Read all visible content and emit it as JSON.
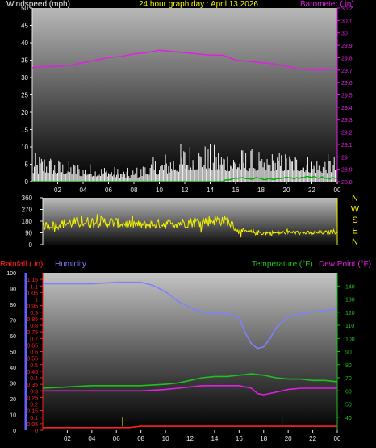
{
  "header": {
    "wind_label": "Windspeed (mph)",
    "title": "24 hour graph day : April 13 2026",
    "baro_label": "Barometer (.in)"
  },
  "lower_header": {
    "rain_label": "Rainfall (.in)",
    "humidity_label": "Humidity",
    "temp_label": "Temperature (°F)",
    "dew_label": "Dew Point (°F)"
  },
  "colors": {
    "wind": "#f0f0f0",
    "gust": "#00b000",
    "barometer": "#e020e0",
    "direction": "#f0f000",
    "rain": "#ff2020",
    "humidity": "#8080ff",
    "temperature": "#20c020",
    "dewpoint": "#e020e0",
    "axis_white": "#e8e8e8",
    "axis_yellow": "#f0f000",
    "axis_blue": "#6060ff",
    "axis_green": "#20c020",
    "axis_red": "#ff2020"
  },
  "chart_data": [
    {
      "type": "line",
      "x_ticks": [
        "02",
        "04",
        "06",
        "08",
        "10",
        "12",
        "14",
        "16",
        "18",
        "20",
        "22",
        "00"
      ],
      "y_left": {
        "label": "Windspeed (mph)",
        "ylim": [
          0,
          50
        ],
        "ticks": [
          0,
          5,
          10,
          15,
          20,
          25,
          30,
          35,
          40,
          45,
          50
        ]
      },
      "y_right": {
        "label": "Barometer (.in)",
        "ylim": [
          28.8,
          30.2
        ],
        "ticks": [
          "28.8",
          "28.9",
          "29",
          "29.1",
          "29.2",
          "29.3",
          "29.4",
          "29.5",
          "29.6",
          "29.7",
          "29.8",
          "29.9",
          "30",
          "30.1",
          "30.2"
        ]
      },
      "series": [
        {
          "name": "Barometer (.in)",
          "axis": "right",
          "x": [
            0,
            1,
            2,
            3,
            4,
            5,
            6,
            7,
            8,
            9,
            10,
            11,
            12,
            13,
            14,
            15,
            16,
            17,
            18,
            19,
            20,
            21,
            22,
            23,
            24
          ],
          "values": [
            29.72,
            29.73,
            29.73,
            29.74,
            29.76,
            29.78,
            29.8,
            29.81,
            29.83,
            29.84,
            29.86,
            29.85,
            29.84,
            29.83,
            29.82,
            29.82,
            29.78,
            29.77,
            29.76,
            29.75,
            29.73,
            29.71,
            29.7,
            29.7,
            29.71
          ]
        },
        {
          "name": "Windspeed (mph)",
          "axis": "left",
          "x": [
            0,
            1,
            2,
            3,
            4,
            5,
            6,
            7,
            8,
            9,
            10,
            11,
            12,
            13,
            14,
            15,
            16,
            17,
            18,
            19,
            20,
            21,
            22,
            23,
            24
          ],
          "values": [
            2,
            2.5,
            2,
            2,
            1.5,
            1.5,
            1.5,
            1,
            1,
            1.5,
            2,
            2.5,
            3,
            3.5,
            3,
            3,
            3,
            3,
            3,
            3,
            3,
            3,
            2.5,
            2.5,
            2.5
          ],
          "max": [
            8,
            9,
            7,
            6,
            6,
            5,
            5,
            4,
            4,
            6,
            8,
            10,
            12,
            12,
            11,
            11,
            10,
            10,
            9,
            9,
            9,
            9,
            8,
            8,
            8
          ]
        },
        {
          "name": "Gust",
          "axis": "left",
          "x": [
            0,
            15,
            16,
            17,
            18,
            19,
            20,
            21,
            22,
            23,
            24
          ],
          "values": [
            0,
            0,
            1,
            1,
            1,
            0.5,
            1,
            1,
            1.5,
            1,
            1
          ]
        }
      ]
    },
    {
      "type": "line",
      "x_ticks": [
        "02",
        "04",
        "06",
        "08",
        "10",
        "12",
        "14",
        "16",
        "18",
        "20",
        "22",
        "00"
      ],
      "y_left": {
        "ylim": [
          0,
          360
        ],
        "ticks": [
          0,
          90,
          180,
          270,
          360
        ]
      },
      "y_right": {
        "labels": [
          "N",
          "W",
          "S",
          "E",
          "N"
        ]
      },
      "series": [
        {
          "name": "Wind direction",
          "x": [
            0,
            1,
            2,
            3,
            4,
            5,
            6,
            7,
            8,
            9,
            10,
            11,
            12,
            13,
            14,
            15,
            16,
            17,
            18,
            19,
            20,
            21,
            22,
            23,
            24
          ],
          "values": [
            145,
            150,
            165,
            170,
            172,
            175,
            168,
            160,
            150,
            155,
            160,
            165,
            170,
            180,
            190,
            185,
            100,
            95,
            90,
            88,
            92,
            90,
            88,
            92,
            100
          ],
          "spread": [
            30,
            35,
            40,
            45,
            45,
            45,
            40,
            35,
            35,
            35,
            40,
            40,
            40,
            45,
            45,
            40,
            25,
            20,
            20,
            15,
            15,
            15,
            15,
            15,
            20
          ]
        }
      ]
    },
    {
      "type": "line",
      "x_ticks": [
        "02",
        "04",
        "06",
        "08",
        "10",
        "12",
        "14",
        "16",
        "18",
        "20",
        "22",
        "00"
      ],
      "y_humidity": {
        "ylim": [
          0,
          100
        ],
        "ticks": [
          0,
          10,
          20,
          30,
          40,
          50,
          60,
          70,
          80,
          90,
          100
        ]
      },
      "y_rain": {
        "ylim": [
          0,
          1.2
        ],
        "ticks": [
          "0",
          "0.05",
          "0.1",
          "0.15",
          "0.2",
          "0.25",
          "0.3",
          "0.35",
          "0.4",
          "0.45",
          "0.5",
          "0.55",
          "0.6",
          "0.65",
          "0.7",
          "0.75",
          "0.8",
          "0.85",
          "0.9",
          "0.95",
          "1",
          "1.05",
          "1.1",
          "1.15"
        ]
      },
      "y_temp": {
        "ylim": [
          30,
          150
        ],
        "ticks": [
          40,
          50,
          60,
          70,
          80,
          90,
          100,
          110,
          120,
          130,
          140
        ]
      },
      "series": [
        {
          "name": "Humidity",
          "axis": "humidity",
          "x": [
            0,
            2,
            4,
            6,
            8,
            9,
            10,
            11,
            12,
            13,
            14,
            15,
            16,
            16.5,
            17,
            17.5,
            18,
            18.5,
            19,
            20,
            21,
            22,
            23,
            24
          ],
          "values": [
            93,
            93,
            93,
            94,
            94,
            92,
            88,
            82,
            78,
            75,
            74,
            74,
            72,
            62,
            55,
            52,
            53,
            58,
            65,
            72,
            74,
            75,
            76,
            77
          ]
        },
        {
          "name": "Temperature (°F)",
          "axis": "temp",
          "x": [
            0,
            2,
            4,
            6,
            8,
            10,
            11,
            12,
            13,
            14,
            15,
            16,
            17,
            18,
            19,
            20,
            21,
            22,
            23,
            24
          ],
          "values": [
            62,
            63,
            64,
            64,
            64,
            65,
            66,
            68,
            70,
            71,
            71,
            72,
            73,
            72,
            70,
            69,
            69,
            68,
            68,
            67
          ]
        },
        {
          "name": "Dew Point (°F)",
          "axis": "temp",
          "x": [
            0,
            2,
            4,
            6,
            8,
            10,
            11,
            12,
            13,
            14,
            15,
            16,
            17,
            17.5,
            18,
            19,
            20,
            21,
            22,
            23,
            24
          ],
          "values": [
            60,
            60,
            60,
            60,
            60,
            61,
            62,
            63,
            64,
            64,
            64,
            64,
            62,
            58,
            57,
            59,
            61,
            62,
            62,
            62,
            62
          ]
        },
        {
          "name": "Rainfall (.in)",
          "axis": "rain",
          "x": [
            0,
            7,
            8,
            16,
            24
          ],
          "values": [
            0.02,
            0.02,
            0.03,
            0.03,
            0.03
          ]
        }
      ]
    }
  ]
}
